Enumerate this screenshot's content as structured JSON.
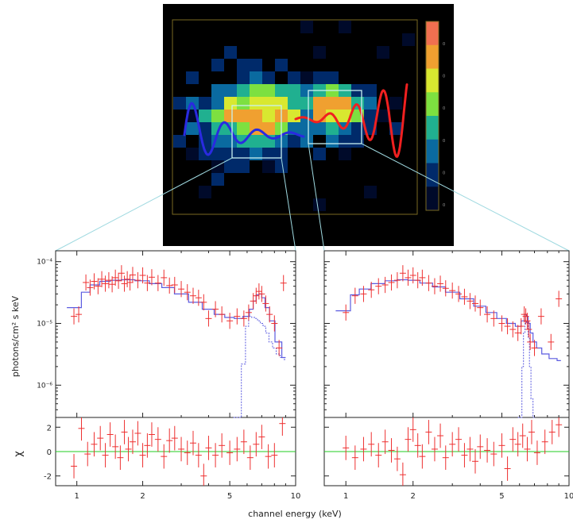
{
  "colors": {
    "image_bg": "#000000",
    "frame": "#7a6a22",
    "connector": "#9fd9e0",
    "region_box": "#c8f0f0",
    "wave_blue": "#2a2ae0",
    "wave_red": "#f02020",
    "data": "#ee3030",
    "model": "#5c5ce0",
    "component": "#5c5ce0",
    "zero_line": "#22cc22"
  },
  "colorbar": {
    "stops": [
      "#000a2a",
      "#002a6a",
      "#0a6aa0",
      "#20b090",
      "#7de040",
      "#d8e830",
      "#f0a030",
      "#f07050"
    ],
    "tick_labels": [
      "0",
      "0",
      "0",
      "0",
      "0",
      "0"
    ]
  },
  "chart_data": [
    {
      "type": "scatter",
      "panel": "left",
      "x_scale": "log",
      "xlim": [
        0.8,
        10
      ],
      "x_ticks": [
        1,
        2,
        5,
        10
      ],
      "x_tick_labels": [
        "1",
        "2",
        "5",
        "10"
      ],
      "y_scale": "log",
      "ylim": [
        3e-07,
        0.00015
      ],
      "y_ticks": [
        1e-06,
        1e-05,
        0.0001
      ],
      "y_tick_labels": [
        "10⁻⁶",
        "10⁻⁵",
        "10⁻⁴"
      ],
      "ylabel": "photons/cm² s keV",
      "data": {
        "x": [
          0.97,
          1.02,
          1.1,
          1.15,
          1.2,
          1.25,
          1.3,
          1.35,
          1.4,
          1.45,
          1.5,
          1.55,
          1.6,
          1.65,
          1.7,
          1.75,
          1.8,
          1.9,
          2.0,
          2.1,
          2.2,
          2.35,
          2.5,
          2.65,
          2.8,
          3.0,
          3.2,
          3.4,
          3.6,
          3.8,
          4.0,
          4.3,
          4.6,
          5.0,
          5.4,
          5.8,
          6.1,
          6.4,
          6.6,
          6.8,
          7.0,
          7.3,
          7.6,
          8.0,
          8.4,
          8.8
        ],
        "y": [
          1.3e-05,
          1.4e-05,
          4.6e-05,
          3.8e-05,
          4.8e-05,
          4e-05,
          5.2e-05,
          4.4e-05,
          5e-05,
          4.3e-05,
          5.5e-05,
          4.9e-05,
          6.5e-05,
          4.4e-05,
          5.2e-05,
          4.6e-05,
          6.1e-05,
          5e-05,
          6e-05,
          4.5e-05,
          5.6e-05,
          4.5e-05,
          5.5e-05,
          4.1e-05,
          4.2e-05,
          3.6e-05,
          3.2e-05,
          2.8e-05,
          2.6e-05,
          2.2e-05,
          1.2e-05,
          1.7e-05,
          1.4e-05,
          1.1e-05,
          1.3e-05,
          1.2e-05,
          1.5e-05,
          2.3e-05,
          2.8e-05,
          3.3e-05,
          3e-05,
          2.1e-05,
          1.4e-05,
          1e-05,
          4e-06,
          4.5e-05
        ]
      },
      "model": {
        "x": [
          0.9,
          1.0,
          1.1,
          1.2,
          1.35,
          1.5,
          1.7,
          2.0,
          2.3,
          2.6,
          3.0,
          3.5,
          4.0,
          4.5,
          5.0,
          5.5,
          6.0,
          6.3,
          6.5,
          6.7,
          6.9,
          7.1,
          7.4,
          7.8,
          8.3,
          9.0
        ],
        "y": [
          1.8e-05,
          1.8e-05,
          3.2e-05,
          4.2e-05,
          4.8e-05,
          5e-05,
          5.1e-05,
          4.9e-05,
          4.4e-05,
          3.8e-05,
          3e-05,
          2.2e-05,
          1.7e-05,
          1.4e-05,
          1.25e-05,
          1.2e-05,
          1.3e-05,
          1.7e-05,
          2.3e-05,
          2.9e-05,
          3e-05,
          2.6e-05,
          1.8e-05,
          1.1e-05,
          5e-06,
          2.8e-06
        ]
      },
      "component": {
        "x": [
          5.2,
          5.5,
          5.8,
          6.0,
          6.2,
          6.4,
          6.6,
          6.8,
          7.0,
          7.2,
          7.4,
          7.7,
          8.0,
          8.3,
          8.7,
          9.0
        ],
        "y": [
          3e-07,
          3e-07,
          2.2e-06,
          9e-06,
          1.3e-05,
          1.25e-05,
          1.2e-05,
          1.1e-05,
          1e-05,
          9e-06,
          7e-06,
          5e-06,
          4e-06,
          3.2e-06,
          2.8e-06,
          2.6e-06
        ]
      },
      "residuals": {
        "ylabel": "χ",
        "ylim": [
          -2.8,
          2.8
        ],
        "y_ticks": [
          -2,
          0,
          2
        ],
        "y_tick_labels": [
          "-2",
          "0",
          "2"
        ],
        "x": [
          0.97,
          1.05,
          1.12,
          1.2,
          1.28,
          1.35,
          1.42,
          1.5,
          1.58,
          1.65,
          1.72,
          1.8,
          1.9,
          2.0,
          2.1,
          2.2,
          2.35,
          2.5,
          2.65,
          2.8,
          3.0,
          3.2,
          3.4,
          3.6,
          3.8,
          4.0,
          4.3,
          4.6,
          5.0,
          5.4,
          5.8,
          6.2,
          6.6,
          7.0,
          7.5,
          8.0,
          8.7
        ],
        "y": [
          -1.2,
          1.9,
          -0.2,
          0.6,
          1.1,
          -0.3,
          1.4,
          0.4,
          -0.5,
          1.6,
          0.2,
          0.8,
          1.5,
          -0.3,
          0.5,
          1.4,
          1.0,
          -0.4,
          0.9,
          1.1,
          0.2,
          -0.1,
          0.7,
          -0.3,
          -2.0,
          0.3,
          -0.3,
          0.5,
          -0.1,
          0.2,
          0.8,
          -0.5,
          0.6,
          1.2,
          -0.4,
          -0.3,
          2.3
        ]
      }
    },
    {
      "type": "scatter",
      "panel": "right",
      "x_scale": "log",
      "xlim": [
        0.8,
        10
      ],
      "x_ticks": [
        1,
        2,
        5,
        10
      ],
      "x_tick_labels": [
        "1",
        "2",
        "5",
        "10"
      ],
      "y_scale": "log",
      "ylim": [
        3e-07,
        0.00015
      ],
      "data": {
        "x": [
          1.0,
          1.1,
          1.2,
          1.3,
          1.4,
          1.5,
          1.6,
          1.7,
          1.8,
          1.9,
          2.0,
          2.1,
          2.2,
          2.35,
          2.5,
          2.65,
          2.8,
          3.0,
          3.2,
          3.4,
          3.6,
          3.8,
          4.0,
          4.3,
          4.6,
          5.0,
          5.3,
          5.6,
          5.9,
          6.1,
          6.3,
          6.4,
          6.5,
          6.6,
          6.7,
          7.0,
          7.5,
          8.3,
          9.0
        ],
        "y": [
          1.5e-05,
          2.8e-05,
          3e-05,
          3.5e-05,
          4e-05,
          4.2e-05,
          4.6e-05,
          5e-05,
          6.5e-05,
          5.5e-05,
          6e-05,
          5e-05,
          5.5e-05,
          4.5e-05,
          4e-05,
          4.4e-05,
          3.7e-05,
          3.4e-05,
          3e-05,
          2.7e-05,
          2.3e-05,
          2.1e-05,
          1.8e-05,
          1.4e-05,
          1.2e-05,
          1e-05,
          9e-06,
          8e-06,
          7e-06,
          9e-06,
          1.4e-05,
          1.3e-05,
          1.1e-05,
          8e-06,
          5e-06,
          4e-06,
          1.3e-05,
          5e-06,
          2.5e-05
        ]
      },
      "model": {
        "x": [
          0.9,
          1.0,
          1.1,
          1.2,
          1.4,
          1.6,
          1.8,
          2.0,
          2.3,
          2.6,
          3.0,
          3.5,
          4.0,
          4.5,
          5.0,
          5.5,
          6.0,
          6.2,
          6.4,
          6.5,
          6.6,
          6.8,
          7.0,
          7.3,
          7.8,
          8.5,
          9.2
        ],
        "y": [
          1.6e-05,
          1.6e-05,
          2.9e-05,
          3.6e-05,
          4.4e-05,
          4.9e-05,
          5.1e-05,
          5e-05,
          4.5e-05,
          3.9e-05,
          3.2e-05,
          2.5e-05,
          1.9e-05,
          1.5e-05,
          1.2e-05,
          1e-05,
          9e-06,
          1.1e-05,
          1.4e-05,
          1.3e-05,
          1e-05,
          7e-06,
          5e-06,
          4e-06,
          3.2e-06,
          2.7e-06,
          2.5e-06
        ]
      },
      "component": {
        "x": [
          5.9,
          6.1,
          6.2,
          6.3,
          6.4,
          6.5,
          6.6,
          6.7,
          6.8,
          7.0
        ],
        "y": [
          3e-07,
          3e-07,
          2e-06,
          7e-06,
          1.1e-05,
          1e-05,
          6e-06,
          2e-06,
          6e-07,
          3e-07
        ]
      },
      "residuals": {
        "ylim": [
          -2.8,
          2.8
        ],
        "y_ticks": [
          -2,
          0,
          2
        ],
        "x": [
          1.0,
          1.1,
          1.2,
          1.3,
          1.4,
          1.5,
          1.6,
          1.7,
          1.8,
          1.9,
          2.0,
          2.1,
          2.2,
          2.35,
          2.5,
          2.65,
          2.8,
          3.0,
          3.2,
          3.4,
          3.6,
          3.8,
          4.0,
          4.3,
          4.6,
          5.0,
          5.3,
          5.6,
          5.9,
          6.2,
          6.5,
          6.8,
          7.2,
          7.8,
          8.4,
          9.0
        ],
        "y": [
          0.3,
          -0.5,
          0.2,
          0.6,
          -0.3,
          0.8,
          0.1,
          -0.6,
          -1.9,
          1.0,
          1.8,
          0.5,
          -0.4,
          1.6,
          0.2,
          1.3,
          -0.5,
          0.6,
          1.0,
          -0.3,
          0.2,
          -0.8,
          0.4,
          0.1,
          -0.2,
          0.5,
          -1.4,
          1.0,
          0.6,
          1.3,
          0.2,
          1.6,
          -0.1,
          0.8,
          1.6,
          2.2
        ]
      }
    }
  ],
  "xlabel": "channel energy (keV)"
}
